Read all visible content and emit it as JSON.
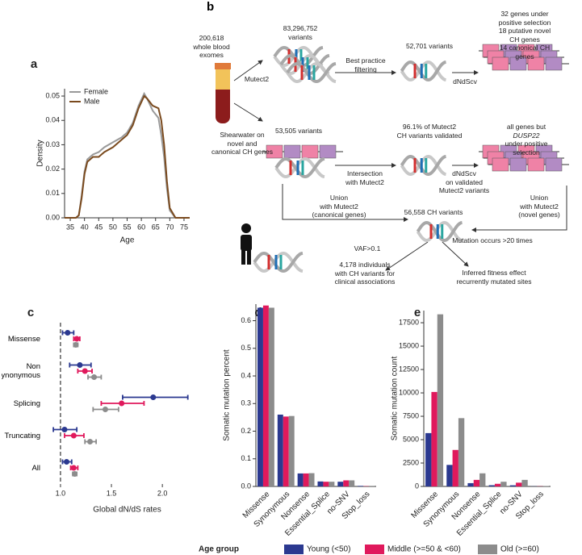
{
  "chart_data": [
    {
      "type": "line",
      "label": "a",
      "xlabel": "Age",
      "ylabel": "Density",
      "x": [
        33,
        35,
        37,
        38,
        39,
        40,
        41,
        43,
        45,
        47,
        50,
        53,
        55,
        57,
        59,
        61,
        62,
        64,
        66,
        67,
        68,
        69,
        70,
        72,
        75,
        77
      ],
      "series": [
        {
          "name": "Female",
          "color": "#999999",
          "values": [
            0,
            0,
            0,
            0.001,
            0.009,
            0.019,
            0.024,
            0.026,
            0.027,
            0.029,
            0.031,
            0.033,
            0.035,
            0.039,
            0.046,
            0.051,
            0.049,
            0.044,
            0.041,
            0.034,
            0.025,
            0.012,
            0.003,
            0,
            0,
            0
          ]
        },
        {
          "name": "Male",
          "color": "#7a4a1e",
          "values": [
            0,
            0,
            0,
            0.001,
            0.008,
            0.018,
            0.023,
            0.025,
            0.025,
            0.027,
            0.029,
            0.032,
            0.034,
            0.038,
            0.045,
            0.05,
            0.049,
            0.046,
            0.045,
            0.04,
            0.03,
            0.015,
            0.004,
            0,
            0,
            0
          ]
        }
      ],
      "xlim": [
        33,
        77
      ],
      "xticks": [
        35,
        40,
        45,
        50,
        55,
        60,
        65,
        70,
        75
      ],
      "ylim": [
        0,
        0.053
      ],
      "yticks": [
        {
          "value": 0,
          "label": "0.00"
        },
        0.01,
        0.02,
        0.03,
        0.04,
        0.05
      ],
      "legend": "upper left"
    },
    {
      "type": "forest",
      "label": "c",
      "xlabel": "Global dN/dS rates",
      "categories": [
        "Missense",
        "Non synonymous",
        "Splicing",
        "Truncating",
        "All"
      ],
      "series": [
        {
          "name": "Young (<50)",
          "color": "#2b3990",
          "values": [
            1.07,
            1.19,
            1.91,
            1.04,
            1.06
          ],
          "low": [
            1.02,
            1.09,
            1.61,
            0.93,
            1.02
          ],
          "high": [
            1.13,
            1.3,
            2.25,
            1.16,
            1.11
          ]
        },
        {
          "name": "Middle (>=50 & <60)",
          "color": "#e0195c",
          "values": [
            1.16,
            1.24,
            1.6,
            1.13,
            1.13
          ],
          "low": [
            1.13,
            1.17,
            1.4,
            1.04,
            1.1
          ],
          "high": [
            1.19,
            1.31,
            1.82,
            1.23,
            1.17
          ]
        },
        {
          "name": "Old (>=60)",
          "color": "#8c8c8c",
          "values": [
            1.15,
            1.33,
            1.44,
            1.29,
            1.14
          ],
          "low": [
            1.13,
            1.27,
            1.32,
            1.24,
            1.12
          ],
          "high": [
            1.17,
            1.4,
            1.57,
            1.35,
            1.16
          ]
        }
      ],
      "xlim": [
        0.85,
        2.3
      ],
      "xticks": [
        {
          "value": 1,
          "label": "1.0"
        },
        1.5,
        {
          "value": 2,
          "label": "2.0"
        }
      ],
      "refline": 1
    },
    {
      "type": "bar",
      "label": "d",
      "ylabel": "Somatic mutation percent",
      "categories": [
        "Missense",
        "Synonymous",
        "Nonsense",
        "Essential_Splice",
        "no-SNV",
        "Stop_loss"
      ],
      "series": [
        {
          "name": "Young (<50)",
          "color": "#2b3990",
          "values": [
            0.647,
            0.26,
            0.047,
            0.018,
            0.017,
            0.002
          ]
        },
        {
          "name": "Middle (>=50 & <60)",
          "color": "#e0195c",
          "values": [
            0.655,
            0.253,
            0.047,
            0.017,
            0.022,
            0.001
          ]
        },
        {
          "name": "Old (>=60)",
          "color": "#8c8c8c",
          "values": [
            0.647,
            0.255,
            0.048,
            0.017,
            0.022,
            0.002
          ]
        }
      ],
      "ylim": [
        0,
        0.66
      ],
      "yticks": [
        {
          "value": 0,
          "label": "0.0"
        },
        0.1,
        0.2,
        0.3,
        0.4,
        0.5,
        0.6
      ]
    },
    {
      "type": "bar",
      "label": "e",
      "ylabel": "Somatic mutation count",
      "categories": [
        "Missense",
        "Synonymous",
        "Nonsense",
        "Essential_Splice",
        "no-SNV",
        "Stop_loss"
      ],
      "series": [
        {
          "name": "Young (<50)",
          "color": "#2b3990",
          "values": [
            5700,
            2300,
            350,
            130,
            120,
            15
          ]
        },
        {
          "name": "Middle (>=50 & <60)",
          "color": "#e0195c",
          "values": [
            10100,
            3900,
            700,
            280,
            400,
            20
          ]
        },
        {
          "name": "Old (>=60)",
          "color": "#8c8c8c",
          "values": [
            18400,
            7300,
            1400,
            500,
            700,
            50
          ]
        }
      ],
      "ylim": [
        0,
        18800
      ],
      "yticks": [
        0,
        2500,
        5000,
        7500,
        10000,
        12500,
        15000,
        17500
      ]
    }
  ],
  "legend_title": "Age group",
  "diagram": {
    "label": "b",
    "exomes": "200,618\nwhole blood\nexomes",
    "mutect": "Mutect2",
    "mutect_variants": "83,296,752\nvariants",
    "filtering": "Best practice\nfiltering",
    "filtered": "52,701 variants",
    "dndscv": "dNdScv",
    "selection": "32 genes under positive selection\n18 putative novel CH genes\n14 canonical CH genes",
    "shearwater": "Shearwater on\nnovel and\ncanonical CH genes",
    "shearwater_variants": "53,505 variants",
    "validated": "96.1% of Mutect2\nCH variants validated",
    "all_genes_pre": "all genes but ",
    "all_genes_gene": "DUSP22",
    "all_genes_post": "under positive selection",
    "intersection": "Intersection\nwith Mutect2",
    "dndscv_validated": "dNdScv\non validated\nMutect2 variants",
    "union_canonical": "Union\nwith Mutect2\n(canonical genes)",
    "ch_variants": "56,558 CH variants",
    "union_novel": "Union\nwith Mutect2\n(novel genes)",
    "vaf": "VAF>0.1",
    "recurrence": "Mutation occurs >20 times",
    "clinical": "4,178 individuals\nwith CH variants for\nclinical associations",
    "fitness": "Inferred fitness effect\nrecurrently mutated sites"
  }
}
